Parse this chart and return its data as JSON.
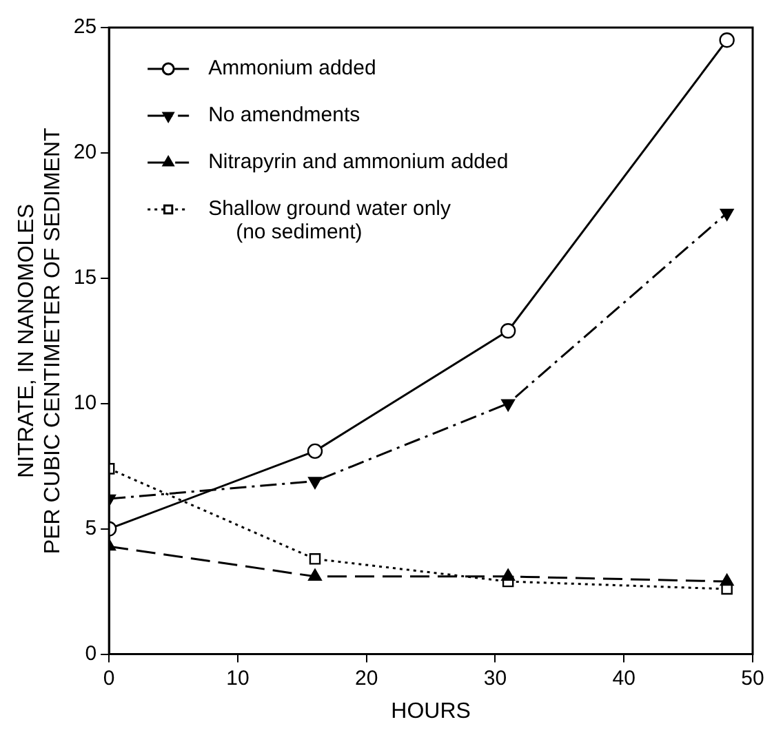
{
  "chart_data": {
    "type": "line",
    "xlabel": "HOURS",
    "ylabel": "NITRATE, IN NANOMOLES\nPER CUBIC CENTIMETER OF SEDIMENT",
    "x": [
      0,
      16,
      31,
      48
    ],
    "xlim": [
      0,
      50
    ],
    "xticks": [
      0,
      10,
      20,
      30,
      40,
      50
    ],
    "ylim": [
      0,
      25
    ],
    "yticks": [
      0,
      5,
      10,
      15,
      20,
      25
    ],
    "grid": false,
    "legend": "top left",
    "series": [
      {
        "name": "Ammonium added",
        "color": "#000000",
        "values": [
          5.0,
          8.1,
          12.9,
          24.5
        ],
        "marker": "circle",
        "line_style": "solid"
      },
      {
        "name": "No amendments",
        "color": "#000000",
        "values": [
          6.2,
          6.9,
          10.0,
          17.6
        ],
        "marker": "triangle-down",
        "line_style": "dashdot"
      },
      {
        "name": "Nitrapyrin and ammonium added",
        "color": "#000000",
        "values": [
          4.3,
          3.1,
          3.1,
          2.9
        ],
        "marker": "triangle",
        "line_style": "dashed"
      },
      {
        "name": "Shallow ground water only\n(no sediment)",
        "color": "#000000",
        "values": [
          7.4,
          3.8,
          2.9,
          2.6
        ],
        "marker": "square",
        "line_style": "dotted"
      }
    ]
  }
}
